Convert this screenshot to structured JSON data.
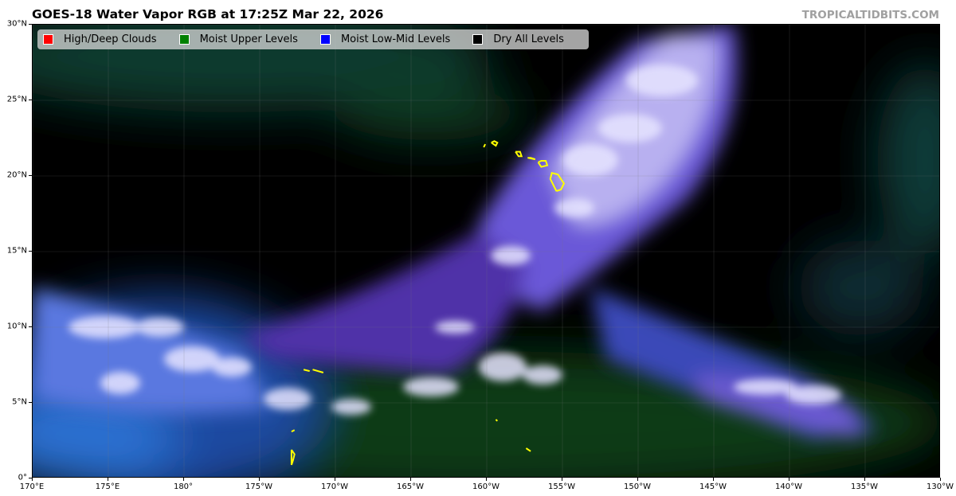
{
  "title": "GOES-18 Water Vapor RGB at 17:25Z Mar 22, 2026",
  "credit": "TROPICALTIDBITS.COM",
  "legend": [
    {
      "label": "High/Deep Clouds",
      "color": "#ff0000"
    },
    {
      "label": "Moist Upper Levels",
      "color": "#008000"
    },
    {
      "label": "Moist Low-Mid Levels",
      "color": "#0000ff"
    },
    {
      "label": "Dry All Levels",
      "color": "#000000"
    }
  ],
  "x_ticks": [
    "170°E",
    "175°E",
    "180°",
    "175°W",
    "170°W",
    "165°W",
    "160°W",
    "155°W",
    "150°W",
    "145°W",
    "140°W",
    "135°W",
    "130°W"
  ],
  "y_ticks": [
    "0°",
    "5°N",
    "10°N",
    "15°N",
    "20°N",
    "25°N",
    "30°N"
  ],
  "extent": {
    "lon_min": 170,
    "lon_max": 230,
    "lat_min": 0,
    "lat_max": 30
  },
  "coastline_color": "#ffff00"
}
